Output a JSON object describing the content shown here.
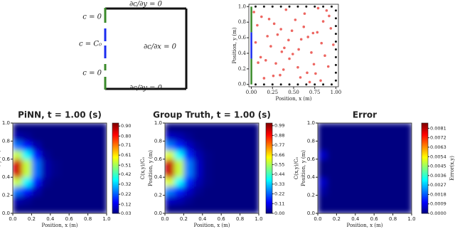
{
  "diagram": {
    "labels": [
      "∂c/∂y = 0",
      "c = 0",
      "c = C₀",
      "c = 0",
      "∂c/∂x = 0",
      "∂c/∂y = 0"
    ]
  },
  "chart_data": [
    {
      "type": "scatter",
      "xlabel": "Position, x (m)",
      "ylabel": "Position, y (m)",
      "xlim": [
        -0.03,
        1.03
      ],
      "ylim": [
        -0.03,
        1.03
      ],
      "xticks": [
        {
          "value": 0,
          "label": "0.00"
        },
        0.25,
        {
          "value": 0.5,
          "label": "0.50"
        },
        0.75,
        {
          "value": 1,
          "label": "1.00"
        }
      ],
      "yticks": [
        {
          "value": 0,
          "label": "0.0"
        },
        0.2,
        0.4,
        0.6,
        0.8,
        {
          "value": 1,
          "label": "1.0"
        }
      ],
      "series": [
        {
          "color": "#e8403a",
          "x": [
            0.12,
            0.34,
            0.56,
            0.78,
            0.91,
            0.05,
            0.27,
            0.63,
            0.45,
            0.82,
            0.19,
            0.71,
            0.38,
            0.94,
            0.08,
            0.52,
            0.66,
            0.23,
            0.87,
            0.41,
            0.15,
            0.59,
            0.74,
            0.31,
            0.97,
            0.03,
            0.48,
            0.85,
            0.36,
            0.69,
            0.11,
            0.55,
            0.79,
            0.26,
            0.62,
            0.44,
            0.92,
            0.17,
            0.73,
            0.39,
            0.58,
            0.07,
            0.83,
            0.29,
            0.67,
            0.49,
            0.21,
            0.76,
            0.35,
            0.89
          ],
          "y": [
            0.87,
            0.12,
            0.45,
            0.67,
            0.23,
            0.54,
            0.78,
            0.91,
            0.33,
            0.05,
            0.62,
            0.41,
            0.19,
            0.72,
            0.28,
            0.83,
            0.15,
            0.49,
            0.37,
            0.96,
            0.08,
            0.58,
            0.26,
            0.64,
            0.51,
            0.93,
            0.69,
            0.81,
            0.42,
            0.03,
            0.35,
            0.22,
            0.98,
            0.11,
            0.74,
            0.57,
            0.88,
            0.31,
            0.66,
            0.47,
            0.09,
            0.76,
            0.53,
            0.27,
            0.61,
            0.39,
            0.84,
            0.14,
            0.71,
            0.95
          ]
        },
        {
          "color": "#111111",
          "x": [
            0.05,
            0.15,
            0.25,
            0.35,
            0.45,
            0.55,
            0.65,
            0.75,
            0.85,
            0.95,
            0.05,
            0.15,
            0.25,
            0.35,
            0.45,
            0.55,
            0.65,
            0.75,
            0.85,
            0.95,
            1,
            1,
            1,
            1,
            1,
            1,
            1,
            1,
            1,
            1
          ],
          "y": [
            1,
            1,
            1,
            1,
            1,
            1,
            1,
            1,
            1,
            1,
            0,
            0,
            0,
            0,
            0,
            0,
            0,
            0,
            0,
            0,
            0.05,
            0.15,
            0.25,
            0.35,
            0.45,
            0.55,
            0.65,
            0.75,
            0.85,
            0.95
          ]
        }
      ]
    },
    {
      "type": "heatmap",
      "title": "PiNN, t = 1.00 (s)",
      "xlabel": "Position, x (m)",
      "ylabel": "Position, y (m)",
      "cbar_label": "C(x,y)/C₀",
      "xlim": [
        0,
        1
      ],
      "ylim": [
        0,
        1
      ],
      "xticks": [
        {
          "value": 0,
          "label": "0.0"
        },
        0.2,
        0.4,
        0.6,
        0.8,
        {
          "value": 1,
          "label": "1.0"
        }
      ],
      "yticks": [
        {
          "value": 0,
          "label": "0.0"
        },
        0.2,
        0.4,
        0.6,
        0.8,
        {
          "value": 1,
          "label": "1.0"
        }
      ],
      "clim": [
        0.03,
        0.93
      ],
      "cticks": [
        0.03,
        0.12,
        0.22,
        0.32,
        0.42,
        0.51,
        0.61,
        0.71,
        {
          "value": 0.8,
          "label": "0.80"
        },
        {
          "value": 0.9,
          "label": "0.90"
        }
      ],
      "z": [
        [
          0.03,
          0.03,
          0.03,
          0.03,
          0.03,
          0.03,
          0.03,
          0.03,
          0.03,
          0.03
        ],
        [
          0.07,
          0.05,
          0.03,
          0.03,
          0.03,
          0.03,
          0.03,
          0.03,
          0.03,
          0.03
        ],
        [
          0.24,
          0.16,
          0.07,
          0.03,
          0.03,
          0.03,
          0.03,
          0.03,
          0.03,
          0.03
        ],
        [
          0.54,
          0.36,
          0.16,
          0.05,
          0.03,
          0.03,
          0.03,
          0.03,
          0.03,
          0.03
        ],
        [
          0.86,
          0.54,
          0.24,
          0.07,
          0.04,
          0.03,
          0.03,
          0.03,
          0.03,
          0.03
        ],
        [
          0.86,
          0.54,
          0.24,
          0.07,
          0.04,
          0.03,
          0.03,
          0.03,
          0.03,
          0.03
        ],
        [
          0.54,
          0.36,
          0.16,
          0.05,
          0.03,
          0.03,
          0.03,
          0.03,
          0.03,
          0.03
        ],
        [
          0.24,
          0.16,
          0.07,
          0.03,
          0.03,
          0.03,
          0.03,
          0.03,
          0.03,
          0.03
        ],
        [
          0.07,
          0.05,
          0.03,
          0.03,
          0.03,
          0.03,
          0.03,
          0.03,
          0.03,
          0.03
        ],
        [
          0.03,
          0.03,
          0.03,
          0.03,
          0.03,
          0.03,
          0.03,
          0.03,
          0.03,
          0.03
        ]
      ]
    },
    {
      "type": "heatmap",
      "title": "Group Truth, t = 1.00 (s)",
      "xlabel": "Position, x (m)",
      "ylabel": "Position, y (m)",
      "cbar_label": "C(x,y)/C₀",
      "xlim": [
        0,
        1
      ],
      "ylim": [
        0,
        1
      ],
      "xticks": [
        {
          "value": 0,
          "label": "0.0"
        },
        0.2,
        0.4,
        0.6,
        0.8,
        {
          "value": 1,
          "label": "1.0"
        }
      ],
      "yticks": [
        {
          "value": 0,
          "label": "0.0"
        },
        0.2,
        0.4,
        0.6,
        0.8,
        {
          "value": 1,
          "label": "1.0"
        }
      ],
      "clim": [
        0,
        1.02
      ],
      "cticks": [
        {
          "value": 0,
          "label": "0.00"
        },
        0.11,
        0.22,
        0.33,
        0.44,
        0.55,
        0.66,
        0.77,
        0.88,
        0.99
      ],
      "z": [
        [
          0,
          0,
          0,
          0,
          0,
          0,
          0,
          0,
          0,
          0
        ],
        [
          0.07,
          0.05,
          0.02,
          0,
          0,
          0,
          0,
          0,
          0,
          0
        ],
        [
          0.25,
          0.16,
          0.07,
          0.02,
          0,
          0,
          0,
          0,
          0,
          0
        ],
        [
          0.6,
          0.38,
          0.16,
          0.05,
          0.01,
          0,
          0,
          0,
          0,
          0
        ],
        [
          0.95,
          0.58,
          0.25,
          0.07,
          0.01,
          0,
          0,
          0,
          0,
          0
        ],
        [
          0.95,
          0.58,
          0.25,
          0.07,
          0.01,
          0,
          0,
          0,
          0,
          0
        ],
        [
          0.6,
          0.38,
          0.16,
          0.05,
          0.01,
          0,
          0,
          0,
          0,
          0
        ],
        [
          0.25,
          0.16,
          0.07,
          0.02,
          0,
          0,
          0,
          0,
          0,
          0
        ],
        [
          0.07,
          0.05,
          0.02,
          0,
          0,
          0,
          0,
          0,
          0,
          0
        ],
        [
          0,
          0,
          0,
          0,
          0,
          0,
          0,
          0,
          0,
          0
        ]
      ]
    },
    {
      "type": "heatmap",
      "title": "Error",
      "xlabel": "Position, x (m)",
      "ylabel": "Position, y (m)",
      "cbar_label": "Error(x,y)",
      "xlim": [
        0,
        1
      ],
      "ylim": [
        0,
        1
      ],
      "xticks": [
        {
          "value": 0,
          "label": "0.0"
        },
        0.2,
        0.4,
        0.6,
        0.8,
        {
          "value": 1,
          "label": "1.0"
        }
      ],
      "yticks": [
        {
          "value": 0,
          "label": "0.0"
        },
        0.2,
        0.4,
        0.6,
        0.8,
        {
          "value": 1,
          "label": "1.0"
        }
      ],
      "clim": [
        0,
        0.0086
      ],
      "cticks": [
        {
          "value": 0,
          "label": "0.0000"
        },
        0.0009,
        0.0018,
        0.0027,
        0.0036,
        0.0045,
        0.0054,
        0.0063,
        0.0072,
        0.0081
      ],
      "z": [
        [
          0,
          0,
          0,
          0,
          0,
          0,
          0,
          0,
          0,
          0
        ],
        [
          0,
          0,
          0,
          0,
          0,
          0,
          0,
          0,
          0,
          0
        ],
        [
          0.0003,
          0,
          0,
          0,
          0,
          0,
          0,
          0,
          0,
          0
        ],
        [
          0.0006,
          0,
          0,
          0,
          0,
          0,
          0,
          0,
          0,
          0
        ],
        [
          0,
          0,
          0,
          0,
          0,
          0,
          0,
          0,
          0,
          0
        ],
        [
          0,
          0,
          0,
          0,
          0,
          0,
          0,
          0,
          0,
          0
        ],
        [
          0.0006,
          0,
          0,
          0,
          0,
          0,
          0,
          0,
          0,
          0
        ],
        [
          0,
          0,
          0,
          0,
          0,
          0,
          0,
          0,
          0,
          0
        ],
        [
          0,
          0,
          0,
          0,
          0,
          0,
          0,
          0,
          0,
          0
        ],
        [
          0,
          0,
          0,
          0,
          0,
          0,
          0,
          0,
          0,
          0
        ]
      ]
    }
  ]
}
